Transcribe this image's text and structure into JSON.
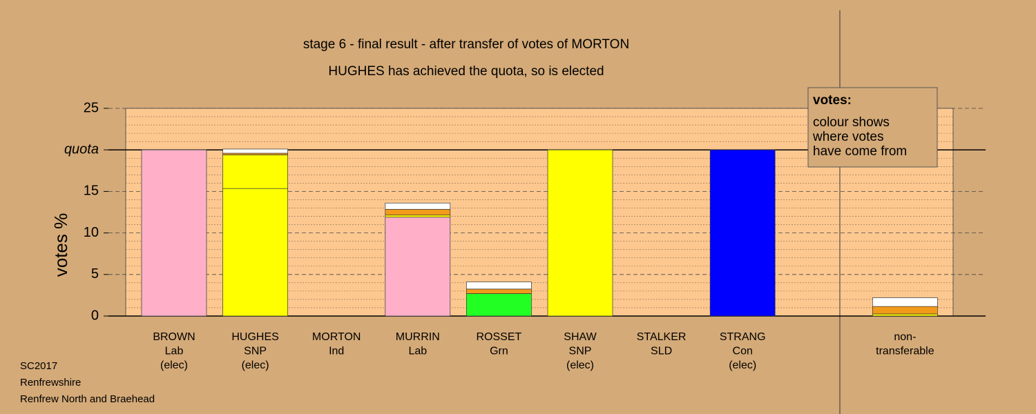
{
  "chart_data": {
    "type": "stacked-bar",
    "title": "stage 6 - final result - after transfer of votes of MORTON",
    "subtitle": "HUGHES has achieved the quota, so is elected",
    "y_label": "votes %",
    "legend_title": "votes:",
    "legend_text": [
      "colour shows",
      "where votes",
      "have come from"
    ],
    "footnotes": [
      "SC2017",
      "Renfrewshire",
      "Renfrew North and Braehead"
    ],
    "categories": [
      [
        "BROWN",
        "Lab",
        "(elec)"
      ],
      [
        "HUGHES",
        "SNP",
        "(elec)"
      ],
      [
        "MORTON",
        "Ind"
      ],
      [
        "MURRIN",
        "Lab"
      ],
      [
        "ROSSET",
        "Grn"
      ],
      [
        "SHAW",
        "SNP",
        "(elec)"
      ],
      [
        "STALKER",
        "SLD"
      ],
      [
        "STRANG",
        "Con",
        "(elec)"
      ],
      null,
      [
        "non-",
        "transferable"
      ]
    ],
    "stacks": [
      [
        {
          "color": "#ffb0c8",
          "value": 20
        }
      ],
      [
        {
          "color": "#ffff00",
          "value": 15.35
        },
        {
          "color": "#ffff00",
          "value": 4.05
        },
        {
          "color": "#f29a1a",
          "value": 0.2
        },
        {
          "color": "#ffffff",
          "value": 0.5
        }
      ],
      [],
      [
        {
          "color": "#ffb0c8",
          "value": 11.9
        },
        {
          "color": "#ffff00",
          "value": 0.25
        },
        {
          "color": "#f29a1a",
          "value": 0.7
        },
        {
          "color": "#ffffff",
          "value": 0.75
        }
      ],
      [
        {
          "color": "#22ff22",
          "value": 2.7
        },
        {
          "color": "#f29a1a",
          "value": 0.55
        },
        {
          "color": "#ffffff",
          "value": 0.85
        }
      ],
      [
        {
          "color": "#ffff00",
          "value": 20
        }
      ],
      [],
      [
        {
          "color": "#0000ff",
          "value": 20
        }
      ],
      [],
      [
        {
          "color": "#ffff00",
          "value": 0.25
        },
        {
          "color": "#f29a1a",
          "value": 0.9
        },
        {
          "color": "#ffffff",
          "value": 1.05
        }
      ]
    ],
    "ylim": [
      0,
      25
    ],
    "yticks": [
      0,
      5,
      10,
      15,
      {
        "value": 20,
        "label": "quota"
      },
      25
    ],
    "minor_yticks": [
      1,
      2,
      3,
      4,
      6,
      7,
      8,
      9,
      11,
      12,
      13,
      14,
      16,
      17,
      18,
      19,
      21,
      22,
      23,
      24
    ],
    "grid": true
  }
}
